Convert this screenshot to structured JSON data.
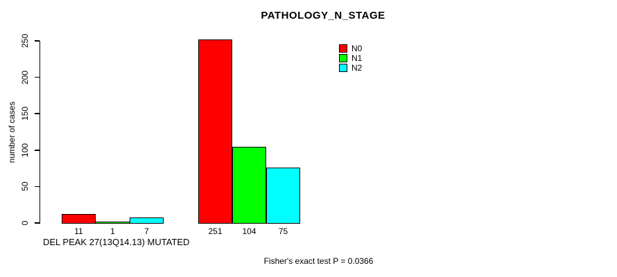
{
  "chart_data": {
    "type": "bar",
    "title": "PATHOLOGY_N_STAGE",
    "ylabel": "number of cases",
    "xlabel": "DEL PEAK 27(13Q14.13) MUTATED",
    "footer": "Fisher's exact test P = 0.0366",
    "ylim": [
      0,
      250
    ],
    "yticks": [
      0,
      50,
      100,
      150,
      200,
      250
    ],
    "grid": false,
    "legend_position": "top-right",
    "groups": [
      "DEL PEAK 27(13Q14.13) MUTATED",
      ""
    ],
    "series": [
      {
        "name": "N0",
        "color": "#ff0000",
        "values": [
          11,
          251
        ]
      },
      {
        "name": "N1",
        "color": "#00ff00",
        "values": [
          1,
          104
        ]
      },
      {
        "name": "N2",
        "color": "#00ffff",
        "values": [
          7,
          75
        ]
      }
    ]
  }
}
